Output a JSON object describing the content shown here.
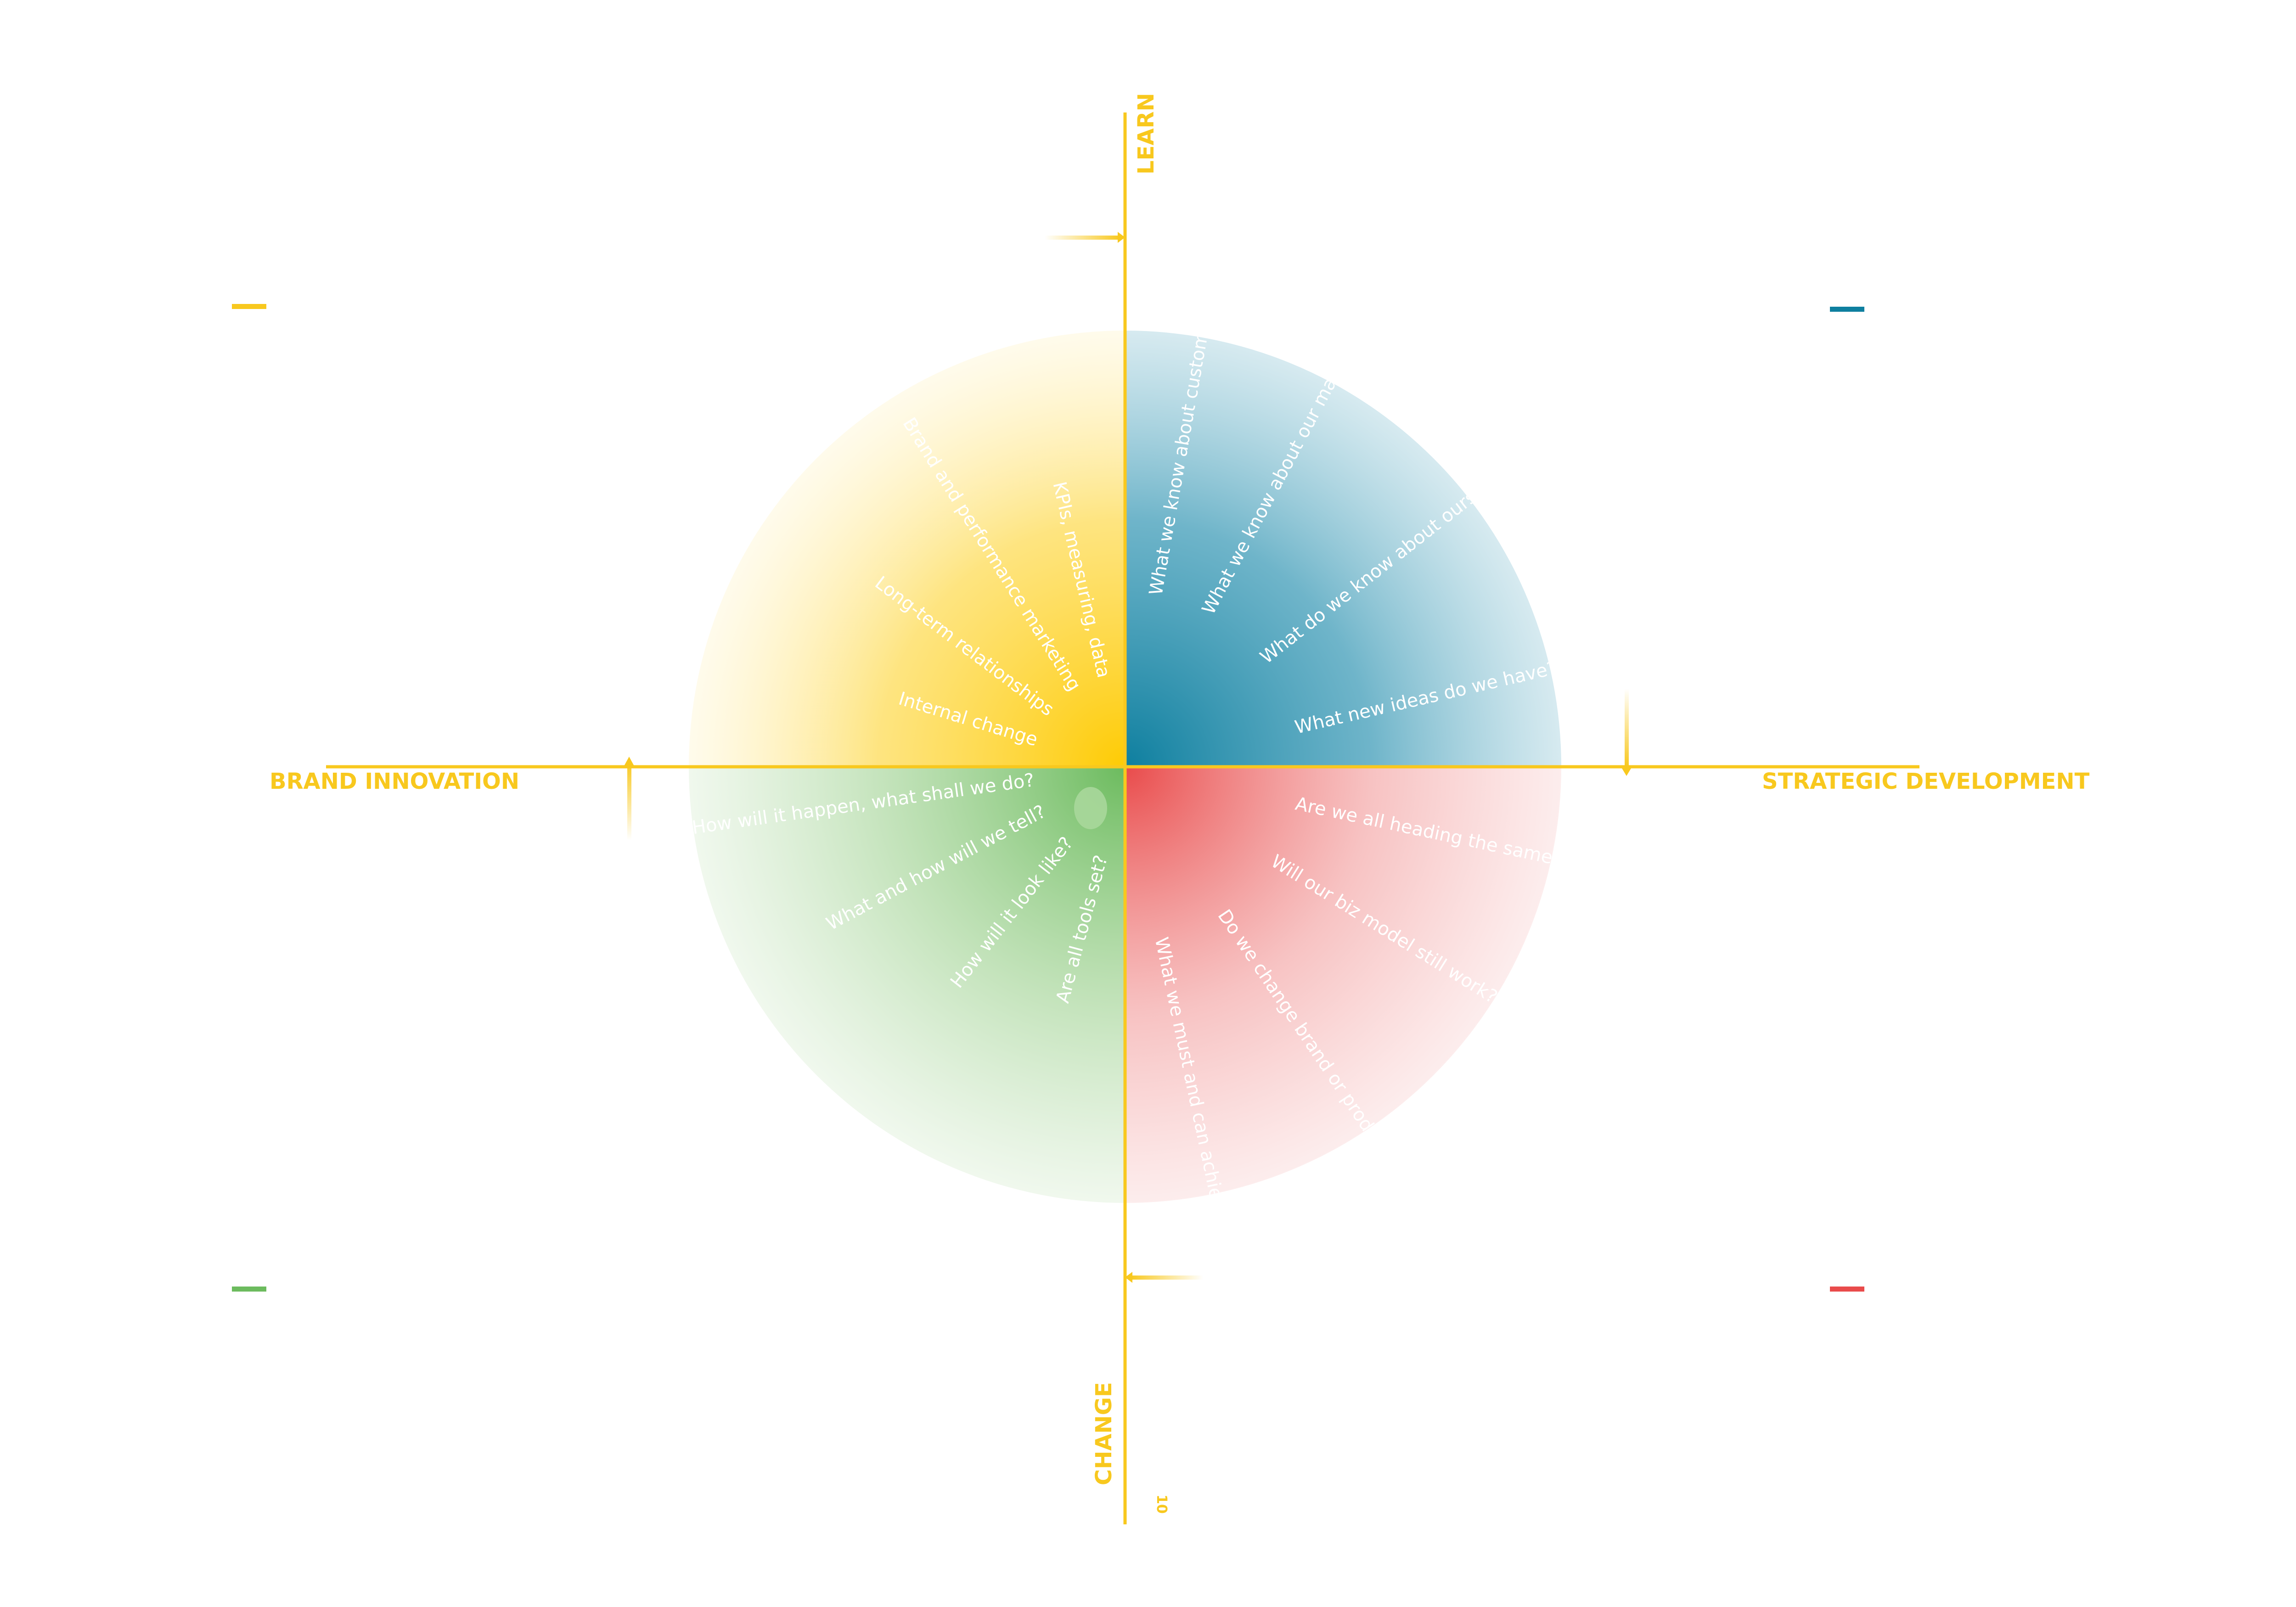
{
  "axes": {
    "top": "LEARN",
    "bottom": "CHANGE",
    "left": "BRAND INNOVATION",
    "right": "STRATEGIC DEVELOPMENT"
  },
  "page_number": "10",
  "colors": {
    "axis": "#f8c81e",
    "yellow": "#fecb04",
    "blue": "#0e7f9f",
    "green": "#6cbb5e",
    "red": "#e94b4b"
  },
  "quadrants": {
    "yellow": {
      "color": "#fecb04",
      "spokes": [
        "KPIs, measuring, data",
        "Brand and performance marketing",
        "Long-term relationships",
        "Internal change"
      ]
    },
    "blue": {
      "color": "#0e7f9f",
      "spokes": [
        "What we know about customers?",
        "What we know about our market?",
        "What do we know about ourselves?",
        "What new ideas do we have?"
      ]
    },
    "green": {
      "color": "#6cbb5e",
      "spokes": [
        "Are all tools set?",
        "How will it look like?",
        "What and how will we tell?",
        "How will it happen, what shall we do?"
      ]
    },
    "red": {
      "color": "#e94b4b",
      "spokes": [
        "Are we all heading the same way?",
        "Will our biz model still work?",
        "Do we change brand or product?",
        "What we must and can achieve?"
      ]
    }
  },
  "corner_marks": {
    "top_left": "#f8c81e",
    "top_right": "#0e7f9f",
    "bottom_left": "#6cbb5e",
    "bottom_right": "#e94b4b"
  }
}
